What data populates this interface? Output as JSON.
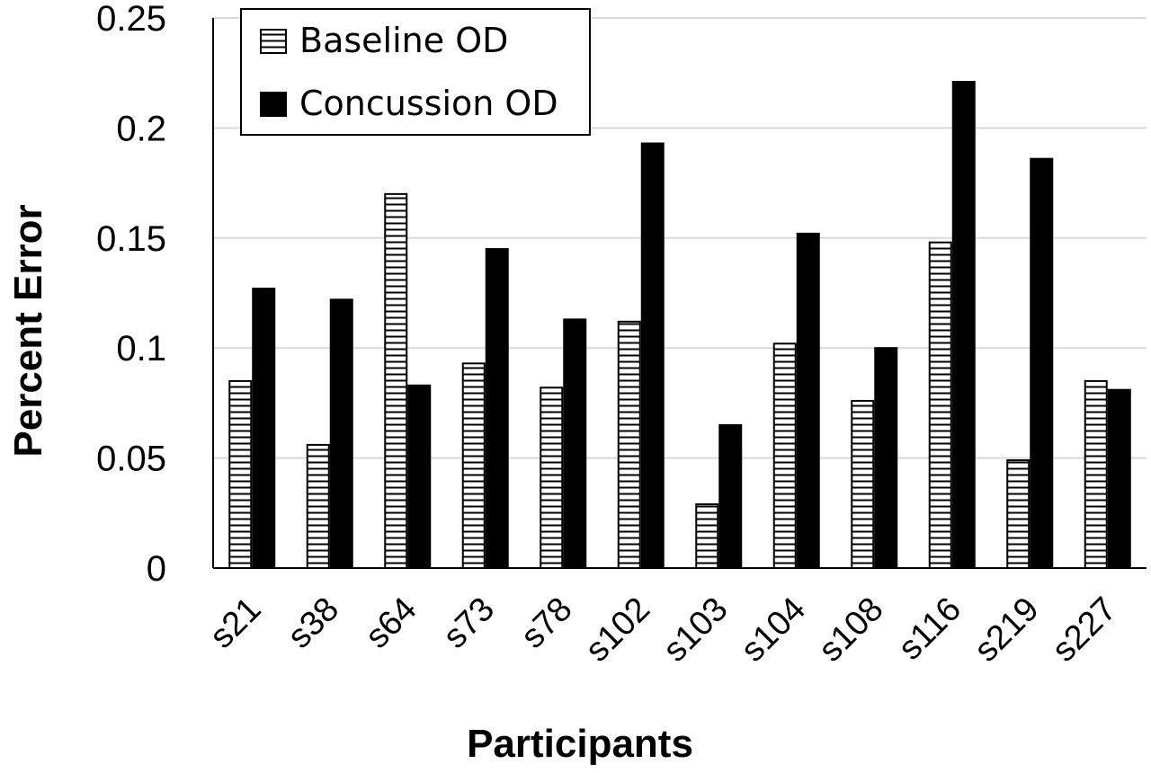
{
  "chart_data": {
    "type": "bar",
    "title": "",
    "xlabel": "Participants",
    "ylabel": "Percent Error",
    "ylim": [
      0,
      0.25
    ],
    "yticks": [
      "0",
      "0.05",
      "0.1",
      "0.15",
      "0.2",
      "0.25"
    ],
    "grid": true,
    "legend_position": "top-left",
    "categories": [
      "s21",
      "s38",
      "s64",
      "s73",
      "s78",
      "s102",
      "s103",
      "s104",
      "s108",
      "s116",
      "s219",
      "s227"
    ],
    "series": [
      {
        "name": "Baseline OD",
        "style": "horizontal-hatch",
        "values": [
          0.085,
          0.056,
          0.17,
          0.093,
          0.082,
          0.112,
          0.029,
          0.102,
          0.076,
          0.148,
          0.049,
          0.085
        ]
      },
      {
        "name": "Concussion OD",
        "style": "solid",
        "color": "#000000",
        "values": [
          0.127,
          0.122,
          0.083,
          0.145,
          0.113,
          0.193,
          0.065,
          0.152,
          0.1,
          0.221,
          0.186,
          0.081
        ]
      }
    ]
  }
}
